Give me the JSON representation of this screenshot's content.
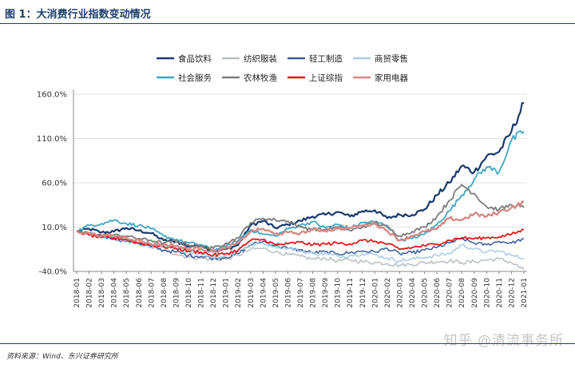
{
  "header": {
    "title": "图 1：大消费行业指数变动情况"
  },
  "footer": {
    "source": "资料来源：Wind、东兴证券研究所"
  },
  "watermark": {
    "text": "知乎 @清流事务所"
  },
  "chart_data": {
    "type": "line",
    "title": "",
    "xlabel": "",
    "ylabel": "",
    "ylim": [
      -40,
      160
    ],
    "yticks": [
      "-40.0%",
      "10.0%",
      "60.0%",
      "110.0%",
      "160.0%"
    ],
    "categories": [
      "2018-01",
      "2018-02",
      "2018-03",
      "2018-04",
      "2018-05",
      "2018-06",
      "2018-07",
      "2018-08",
      "2018-09",
      "2018-10",
      "2018-11",
      "2018-12",
      "2019-01",
      "2019-02",
      "2019-03",
      "2019-04",
      "2019-05",
      "2019-06",
      "2019-07",
      "2019-08",
      "2019-09",
      "2019-10",
      "2019-11",
      "2019-12",
      "2020-01",
      "2020-02",
      "2020-03",
      "2020-04",
      "2020-05",
      "2020-06",
      "2020-07",
      "2020-08",
      "2020-09",
      "2020-10",
      "2020-11",
      "2020-12",
      "2021-01"
    ],
    "grid": true,
    "legend": "top",
    "series": [
      {
        "name": "食品饮料",
        "color": "#1b3a6b",
        "width": 2.2,
        "values": [
          5,
          8,
          4,
          5,
          9,
          6,
          3,
          -5,
          -6,
          -12,
          -10,
          -17,
          -15,
          -10,
          12,
          17,
          9,
          13,
          17,
          22,
          24,
          27,
          22,
          28,
          29,
          20,
          24,
          24,
          30,
          46,
          60,
          79,
          72,
          90,
          95,
          118,
          150
        ]
      },
      {
        "name": "纺织服装",
        "color": "#b9bec4",
        "width": 1.5,
        "values": [
          5,
          3,
          -2,
          -4,
          -5,
          -9,
          -13,
          -17,
          -20,
          -24,
          -25,
          -27,
          -26,
          -22,
          -15,
          -14,
          -18,
          -21,
          -23,
          -26,
          -25,
          -28,
          -27,
          -29,
          -30,
          -31,
          -33,
          -32,
          -30,
          -29,
          -28,
          -30,
          -29,
          -27,
          -26,
          -30,
          -38
        ]
      },
      {
        "name": "轻工制造",
        "color": "#3a5c98",
        "width": 1.5,
        "values": [
          5,
          2,
          0,
          -3,
          -6,
          -8,
          -12,
          -16,
          -18,
          -22,
          -23,
          -25,
          -24,
          -20,
          -10,
          -6,
          -11,
          -14,
          -16,
          -19,
          -18,
          -20,
          -19,
          -17,
          -18,
          -14,
          -20,
          -19,
          -16,
          -13,
          -8,
          -3,
          -8,
          -10,
          -6,
          -8,
          -3
        ]
      },
      {
        "name": "商贸零售",
        "color": "#a9cbe6",
        "width": 1.5,
        "values": [
          5,
          2,
          -1,
          -2,
          -5,
          -7,
          -10,
          -13,
          -14,
          -18,
          -20,
          -24,
          -22,
          -17,
          -10,
          -8,
          -12,
          -14,
          -17,
          -20,
          -20,
          -23,
          -22,
          -20,
          -21,
          -25,
          -28,
          -26,
          -24,
          -22,
          -20,
          -10,
          -15,
          -18,
          -17,
          -22,
          -25
        ]
      },
      {
        "name": "社会服务",
        "color": "#3fa7c2",
        "width": 1.8,
        "values": [
          5,
          12,
          14,
          18,
          14,
          12,
          8,
          0,
          -4,
          -8,
          -10,
          -16,
          -12,
          -5,
          7,
          2,
          0,
          8,
          12,
          16,
          9,
          13,
          9,
          15,
          16,
          12,
          -5,
          -3,
          2,
          13,
          28,
          46,
          64,
          78,
          72,
          108,
          118
        ]
      },
      {
        "name": "农林牧渔",
        "color": "#7b7b7b",
        "width": 1.8,
        "values": [
          5,
          3,
          1,
          1,
          0,
          -3,
          -5,
          -8,
          -6,
          -10,
          -12,
          -14,
          -8,
          -2,
          15,
          20,
          18,
          17,
          10,
          8,
          7,
          10,
          6,
          10,
          15,
          10,
          0,
          5,
          10,
          22,
          40,
          58,
          48,
          33,
          30,
          35,
          32
        ]
      },
      {
        "name": "上证综指",
        "color": "#e01a1a",
        "width": 1.8,
        "values": [
          5,
          1,
          -2,
          -2,
          -4,
          -8,
          -10,
          -12,
          -14,
          -17,
          -18,
          -22,
          -20,
          -16,
          -5,
          -4,
          -10,
          -9,
          -7,
          -10,
          -9,
          -8,
          -9,
          -5,
          -6,
          -9,
          -15,
          -13,
          -11,
          -9,
          -5,
          -2,
          -3,
          -2,
          -1,
          2,
          7
        ]
      },
      {
        "name": "家用电器",
        "color": "#d58a86",
        "width": 2.4,
        "values": [
          5,
          3,
          0,
          0,
          -2,
          -5,
          -9,
          -10,
          -11,
          -15,
          -14,
          -18,
          -14,
          -8,
          5,
          8,
          2,
          4,
          3,
          7,
          6,
          8,
          9,
          12,
          14,
          6,
          -5,
          0,
          5,
          8,
          20,
          18,
          25,
          22,
          27,
          32,
          38
        ]
      }
    ]
  }
}
